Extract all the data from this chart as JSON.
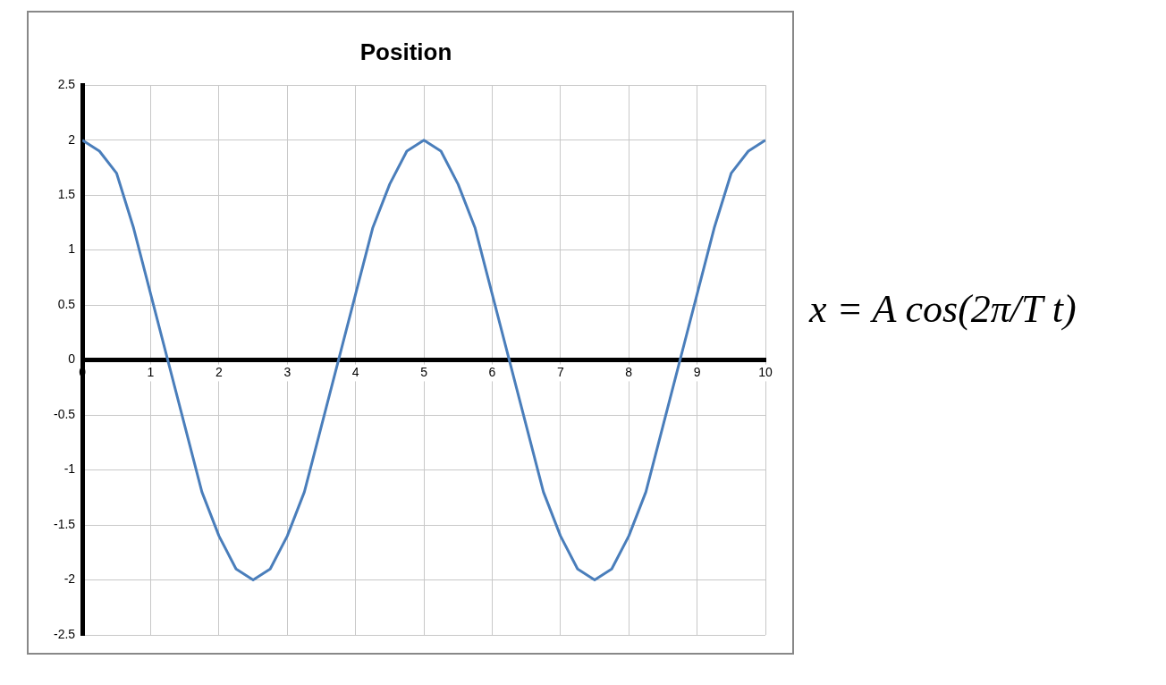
{
  "chart_data": {
    "type": "line",
    "title": "Position",
    "x": [
      0,
      0.25,
      0.5,
      0.75,
      1,
      1.25,
      1.5,
      1.75,
      2,
      2.25,
      2.5,
      2.75,
      3,
      3.25,
      3.5,
      3.75,
      4,
      4.25,
      4.5,
      4.75,
      5,
      5.25,
      5.5,
      5.75,
      6,
      6.25,
      6.5,
      6.75,
      7,
      7.25,
      7.5,
      7.75,
      8,
      8.25,
      8.5,
      8.75,
      9,
      9.25,
      9.5,
      9.75,
      10
    ],
    "series": [
      {
        "color": "#4a7ebb",
        "values": [
          2,
          1.9,
          1.7,
          1.2,
          0.6,
          0,
          -0.6,
          -1.2,
          -1.6,
          -1.9,
          -2,
          -1.9,
          -1.6,
          -1.2,
          -0.6,
          0,
          0.6,
          1.2,
          1.6,
          1.9,
          2,
          1.9,
          1.6,
          1.2,
          0.6,
          0,
          -0.6,
          -1.2,
          -1.6,
          -1.9,
          -2,
          -1.9,
          -1.6,
          -1.2,
          -0.6,
          0,
          0.6,
          1.2,
          1.7,
          1.9,
          2
        ]
      }
    ],
    "xlim": [
      0,
      10
    ],
    "xticks": [
      0,
      1,
      2,
      3,
      4,
      5,
      6,
      7,
      8,
      9,
      10
    ],
    "ylim": [
      -2.5,
      2.5
    ],
    "yticks": [
      -2.5,
      -2,
      -1.5,
      -1,
      -0.5,
      0,
      0.5,
      1,
      1.5,
      2,
      2.5
    ],
    "grid": true,
    "legend": false,
    "marker": "none",
    "line_style": "solid",
    "annotations": [
      "x = A cos(2π/T t)"
    ]
  }
}
